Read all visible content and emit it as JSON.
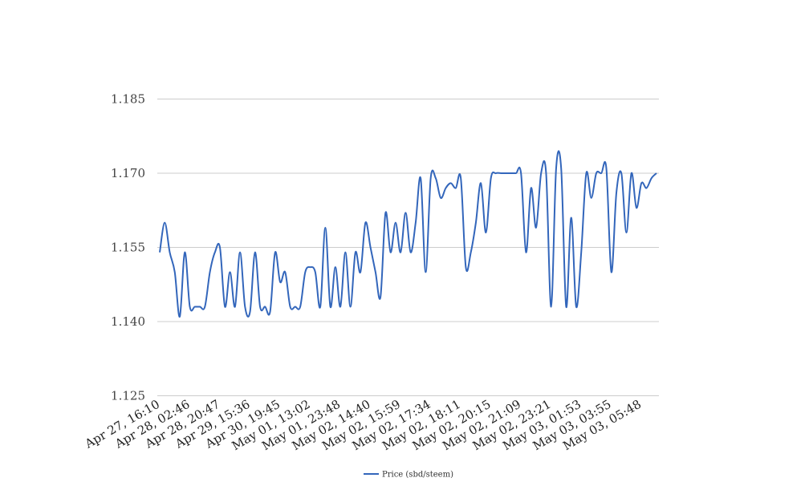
{
  "chart_data": {
    "type": "line",
    "title": "",
    "xlabel": "",
    "ylabel": "",
    "ylim": [
      1.125,
      1.185
    ],
    "yticks": [
      "1.185",
      "1.170",
      "1.155",
      "1.140",
      "1.125"
    ],
    "ytick_values": [
      1.185,
      1.17,
      1.155,
      1.14,
      1.125
    ],
    "grid": true,
    "legend_position": "bottom-center",
    "line_color": "#3366bb",
    "x_labels": [
      "Apr 27, 16:10",
      "Apr 28, 02:46",
      "Apr 28, 20:47",
      "Apr 29, 15:36",
      "Apr 30, 19:45",
      "May 01, 13:02",
      "May 01, 23:48",
      "May 02, 14:40",
      "May 02, 15:59",
      "May 02, 17:34",
      "May 02, 18:11",
      "May 02, 20:15",
      "May 02, 21:09",
      "May 02, 23:21",
      "May 03, 01:53",
      "May 03, 03:55",
      "May 03, 05:48"
    ],
    "series": [
      {
        "name": "Price (sbd/steem)",
        "values": [
          1.154,
          1.16,
          1.154,
          1.15,
          1.141,
          1.154,
          1.143,
          1.143,
          1.143,
          1.143,
          1.15,
          1.154,
          1.155,
          1.143,
          1.15,
          1.143,
          1.154,
          1.143,
          1.142,
          1.154,
          1.143,
          1.143,
          1.142,
          1.154,
          1.148,
          1.15,
          1.143,
          1.143,
          1.143,
          1.15,
          1.151,
          1.15,
          1.143,
          1.159,
          1.143,
          1.151,
          1.143,
          1.154,
          1.143,
          1.154,
          1.15,
          1.16,
          1.155,
          1.15,
          1.145,
          1.162,
          1.154,
          1.16,
          1.154,
          1.162,
          1.154,
          1.16,
          1.169,
          1.15,
          1.169,
          1.169,
          1.165,
          1.167,
          1.168,
          1.167,
          1.169,
          1.151,
          1.154,
          1.16,
          1.168,
          1.158,
          1.169,
          1.17,
          1.17,
          1.17,
          1.17,
          1.17,
          1.17,
          1.154,
          1.167,
          1.159,
          1.17,
          1.17,
          1.143,
          1.171,
          1.171,
          1.143,
          1.161,
          1.143,
          1.154,
          1.17,
          1.165,
          1.17,
          1.17,
          1.171,
          1.15,
          1.166,
          1.17,
          1.158,
          1.17,
          1.163,
          1.168,
          1.167,
          1.169,
          1.17
        ]
      }
    ]
  }
}
